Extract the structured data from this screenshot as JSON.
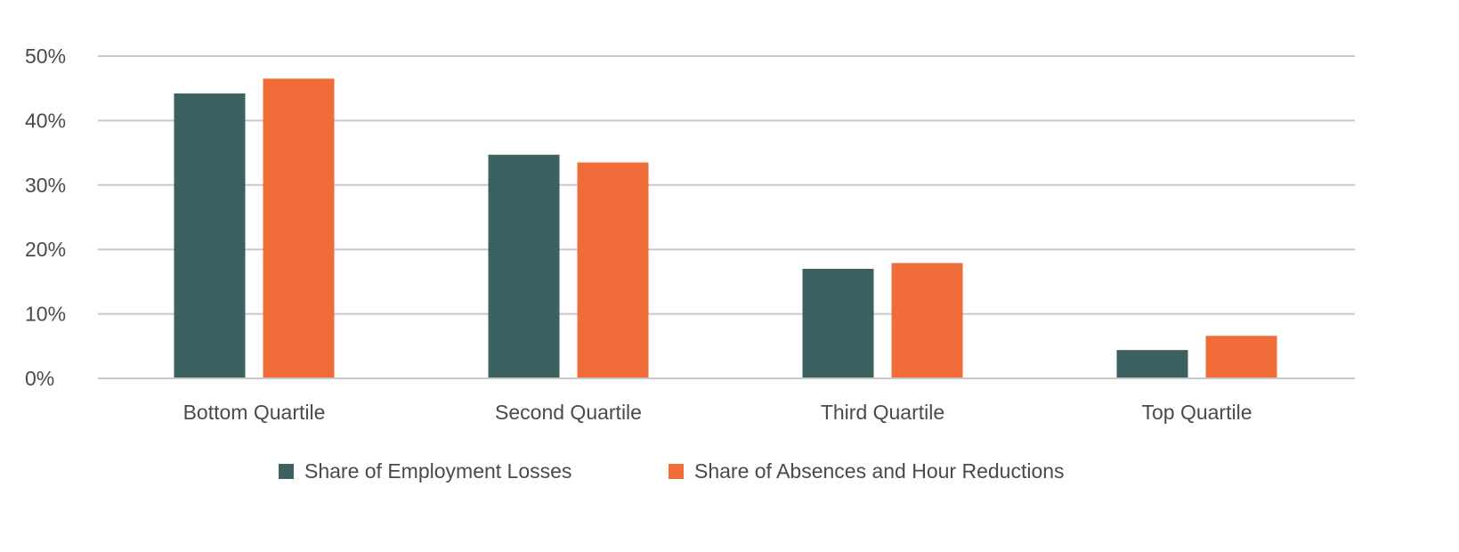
{
  "chart_data": {
    "type": "bar",
    "title": "",
    "xlabel": "",
    "ylabel": "",
    "categories": [
      "Bottom Quartile",
      "Second Quartile",
      "Third Quartile",
      "Top Quartile"
    ],
    "series": [
      {
        "name": "Share of Employment Losses",
        "color": "#3b6260",
        "values": [
          44.2,
          34.7,
          17.0,
          4.4
        ]
      },
      {
        "name": "Share of Absences and Hour Reductions",
        "color": "#f06c38",
        "values": [
          46.5,
          33.5,
          17.9,
          6.6
        ]
      }
    ],
    "ylim": [
      0,
      50
    ],
    "yticks": [
      0,
      10,
      20,
      30,
      40,
      50
    ],
    "ytick_labels": [
      "0%",
      "10%",
      "20%",
      "30%",
      "40%",
      "50%"
    ],
    "grid": true,
    "legend_position": "bottom-center"
  }
}
